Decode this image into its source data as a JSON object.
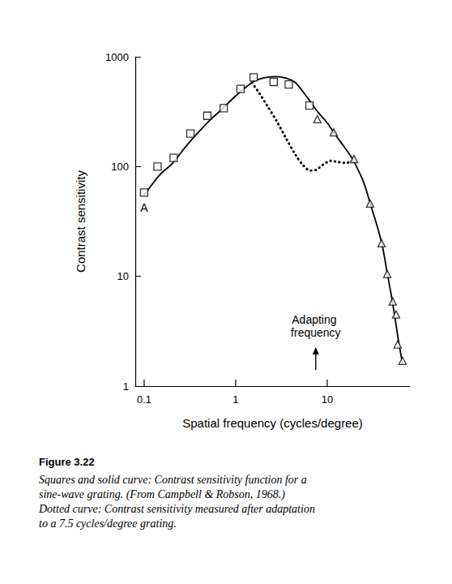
{
  "chart_data": {
    "type": "line",
    "x_label": "Spatial frequency (cycles/degree)",
    "y_label": "Contrast sensitivity",
    "log": true,
    "grid": false,
    "xlim": [
      0.08,
      80
    ],
    "xticks": [
      0.1,
      1,
      10
    ],
    "ylim": [
      1,
      1000
    ],
    "yticks": [
      1,
      10,
      100,
      1000
    ],
    "series": [
      {
        "type": "scatter",
        "marker": "square",
        "color": "#000000",
        "x": [
          0.1,
          0.14,
          0.21,
          0.32,
          0.49,
          0.74,
          1.13,
          1.57,
          2.6,
          3.8,
          6.4
        ],
        "values": [
          58,
          100,
          120,
          200,
          290,
          340,
          510,
          650,
          590,
          560,
          360
        ]
      },
      {
        "type": "scatter",
        "marker": "triangle",
        "color": "#000000",
        "x": [
          7.8,
          11.8,
          19.6,
          29.4,
          39.2,
          45.2,
          52,
          56.5,
          58.9,
          66.5
        ],
        "values": [
          270,
          205,
          117,
          46,
          20,
          10.5,
          5.9,
          4.5,
          2.4,
          1.7
        ]
      },
      {
        "type": "line",
        "line_style": "solid",
        "color": "#000000",
        "x": [
          0.1,
          0.15,
          0.2,
          0.3,
          0.5,
          0.7,
          1,
          1.5,
          2,
          2.7,
          3.5,
          4.5,
          6,
          8,
          10,
          12,
          15,
          18,
          20,
          25,
          30,
          35,
          40,
          45,
          50,
          55,
          60,
          66.5
        ],
        "values": [
          55,
          85,
          105,
          160,
          255,
          330,
          440,
          580,
          640,
          660,
          640,
          580,
          430,
          310,
          250,
          200,
          155,
          125,
          108,
          72,
          44,
          29,
          19,
          11,
          6.8,
          4.2,
          2.6,
          1.6
        ]
      },
      {
        "type": "line",
        "line_style": "dotted",
        "color": "#000000",
        "x": [
          1.5,
          1.8,
          2.2,
          2.8,
          3.5,
          4.5,
          5.5,
          6.5,
          7.5,
          9,
          11,
          13,
          16,
          19
        ],
        "values": [
          580,
          470,
          360,
          260,
          185,
          128,
          102,
          92,
          93,
          104,
          113,
          110,
          108,
          112
        ]
      }
    ],
    "annotations": [
      {
        "text": "A",
        "x": 0.1,
        "y": 58
      },
      {
        "text": "Adapting frequency",
        "x": 7.5
      }
    ]
  },
  "caption": {
    "label": "Figure 3.22",
    "text": "Squares and solid curve: Contrast sensitivity function for a sine-wave grating. (From Campbell & Robson, 1968.) Dotted curve: Contrast sensitivity measured after adaptation to a 7.5 cycles/degree grating."
  }
}
